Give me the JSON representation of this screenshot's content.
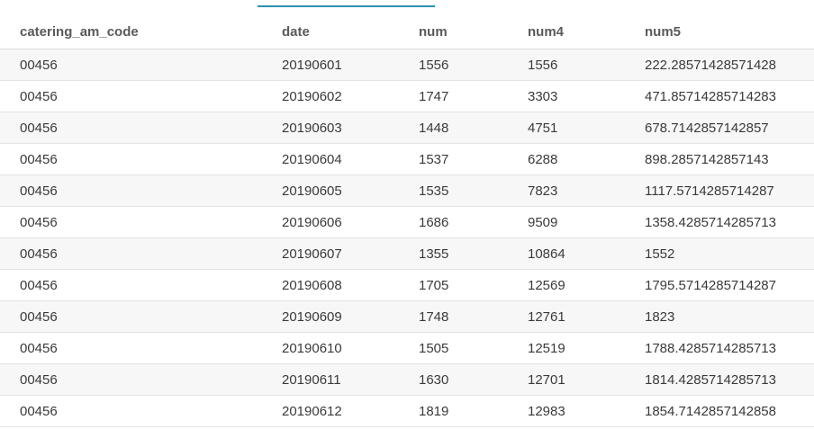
{
  "table": {
    "columns": [
      "catering_am_code",
      "date",
      "num",
      "num4",
      "num5"
    ],
    "rows": [
      [
        "00456",
        "20190601",
        "1556",
        "1556",
        "222.28571428571428"
      ],
      [
        "00456",
        "20190602",
        "1747",
        "3303",
        "471.85714285714283"
      ],
      [
        "00456",
        "20190603",
        "1448",
        "4751",
        "678.7142857142857"
      ],
      [
        "00456",
        "20190604",
        "1537",
        "6288",
        "898.2857142857143"
      ],
      [
        "00456",
        "20190605",
        "1535",
        "7823",
        "1117.5714285714287"
      ],
      [
        "00456",
        "20190606",
        "1686",
        "9509",
        "1358.4285714285713"
      ],
      [
        "00456",
        "20190607",
        "1355",
        "10864",
        "1552"
      ],
      [
        "00456",
        "20190608",
        "1705",
        "12569",
        "1795.5714285714287"
      ],
      [
        "00456",
        "20190609",
        "1748",
        "12761",
        "1823"
      ],
      [
        "00456",
        "20190610",
        "1505",
        "12519",
        "1788.4285714285713"
      ],
      [
        "00456",
        "20190611",
        "1630",
        "12701",
        "1814.4285714285713"
      ],
      [
        "00456",
        "20190612",
        "1819",
        "12983",
        "1854.7142857142858"
      ]
    ]
  },
  "colors": {
    "accent": "#2c8fb0",
    "row_alt": "#f7f7f7",
    "border": "#e3e3e3"
  }
}
